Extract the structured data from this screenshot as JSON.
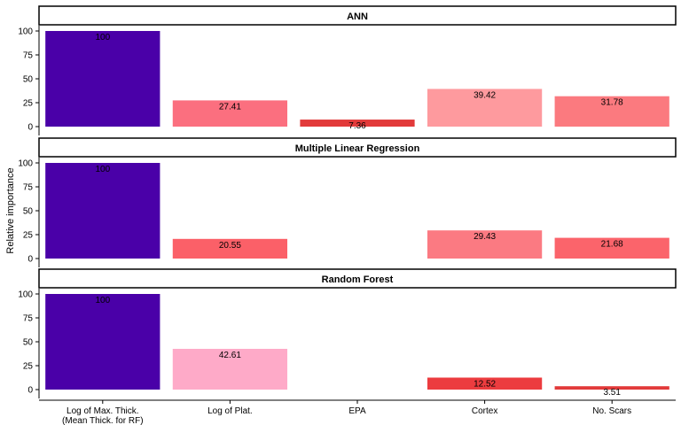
{
  "chart_data": {
    "type": "bar",
    "ylabel": "Relative importance",
    "ylim": [
      0,
      100
    ],
    "yticks": [
      0,
      25,
      50,
      75,
      100
    ],
    "categories": [
      [
        "Log of Max. Thick.",
        "(Mean Thick. for RF)"
      ],
      [
        "Log of Plat."
      ],
      [
        "EPA"
      ],
      [
        "Cortex"
      ],
      [
        "No. Scars"
      ]
    ],
    "grid": false,
    "panels": [
      {
        "title": "ANN",
        "values": [
          100,
          27.41,
          7.36,
          39.42,
          31.78
        ],
        "labels": [
          "100",
          "27.41",
          "7.36",
          "39.42",
          "31.78"
        ],
        "colors": [
          "#4a00a8",
          "#fb6f7f",
          "#e23a3a",
          "#fe9a9e",
          "#fb7a7f"
        ]
      },
      {
        "title": "Multiple Linear Regression",
        "values": [
          100,
          20.55,
          null,
          29.43,
          21.68
        ],
        "labels": [
          "100",
          "20.55",
          "",
          "29.43",
          "21.68"
        ],
        "colors": [
          "#4a00a8",
          "#fb6068",
          "#ffffff",
          "#fb7a82",
          "#fb646b"
        ]
      },
      {
        "title": "Random Forest",
        "values": [
          100,
          42.61,
          null,
          12.52,
          3.51
        ],
        "labels": [
          "100",
          "42.61",
          "",
          "12.52",
          "3.51"
        ],
        "colors": [
          "#4a00a8",
          "#feaac8",
          "#ffffff",
          "#ec3c3f",
          "#e23a3a"
        ]
      }
    ]
  }
}
